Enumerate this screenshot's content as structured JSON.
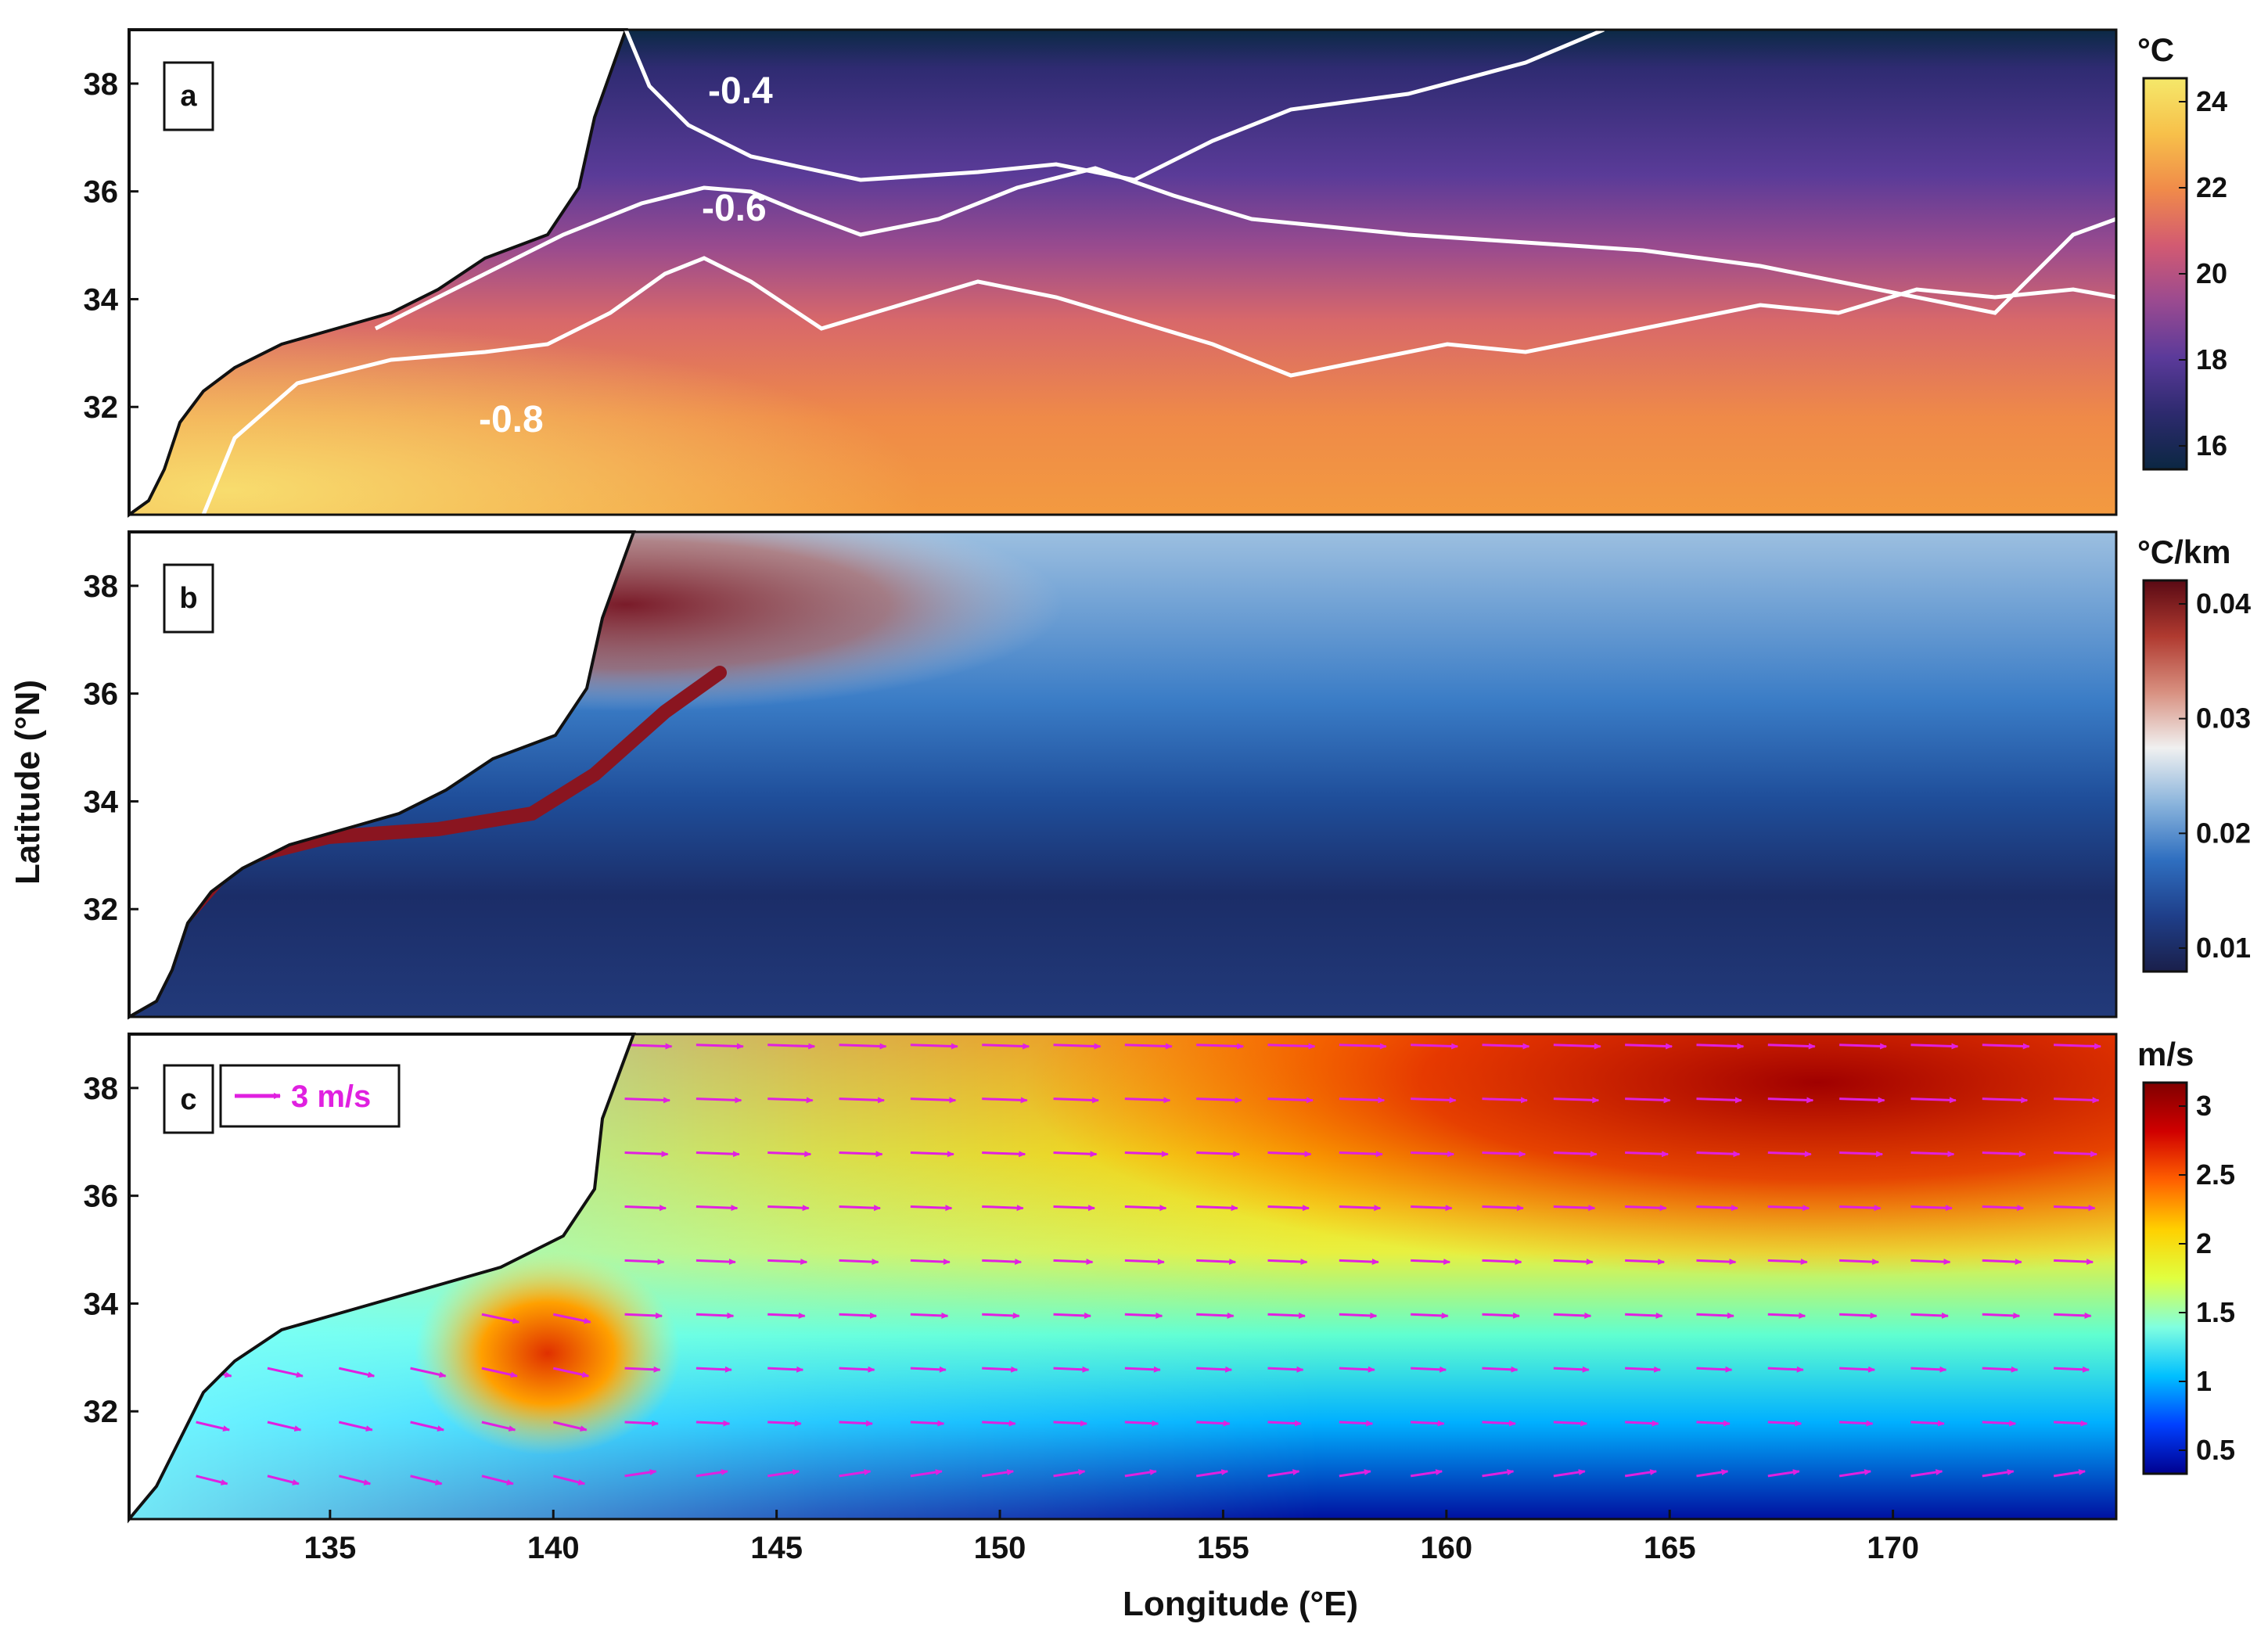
{
  "figure": {
    "xlabel": "Longitude (°E)",
    "ylabel": "Latitude (°N)",
    "x_ticks": [
      "135",
      "140",
      "145",
      "150",
      "155",
      "160",
      "165",
      "170"
    ],
    "y_ticks": [
      "38",
      "36",
      "34",
      "32"
    ],
    "lon_range": [
      130.5,
      175
    ],
    "lat_range": [
      30,
      39
    ]
  },
  "panels": [
    {
      "letter": "a",
      "colorbar": {
        "unit": "°C",
        "ticks": [
          "24",
          "22",
          "20",
          "18",
          "16"
        ],
        "colors": [
          "#0b2742",
          "#2d2a6e",
          "#5b3a9a",
          "#9a4a90",
          "#d25a72",
          "#f08a4a",
          "#f7c04a",
          "#f5e86a"
        ]
      },
      "contour_labels": [
        "-0.4",
        "-0.6",
        "-0.8"
      ]
    },
    {
      "letter": "b",
      "colorbar": {
        "unit": "°C/km",
        "ticks": [
          "0.04",
          "0.03",
          "0.02",
          "0.01"
        ],
        "colors": [
          "#1a1f4a",
          "#1f3f8a",
          "#2f6fc0",
          "#8ab4dc",
          "#f0f0f0",
          "#d89080",
          "#b03a30",
          "#5a0a14"
        ]
      }
    },
    {
      "letter": "c",
      "colorbar": {
        "unit": "m/s",
        "ticks": [
          "3",
          "2.5",
          "2",
          "1.5",
          "1",
          "0.5"
        ],
        "colors": [
          "#00008f",
          "#0040ff",
          "#00c0ff",
          "#80ffe0",
          "#e0ff40",
          "#ffd000",
          "#ff6000",
          "#d00000",
          "#800000"
        ]
      },
      "legend": {
        "label": "3 m/s"
      }
    }
  ]
}
